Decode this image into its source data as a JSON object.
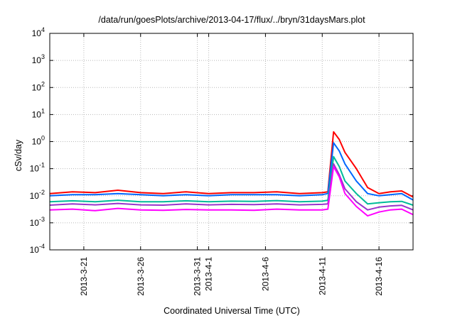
{
  "chart_data": {
    "type": "line",
    "title": "/data/run/goesPlots/archive/2013-04-17/flux/../bryn/31daysMars.plot",
    "xlabel": "Coordinated Universal Time (UTC)",
    "ylabel": "cSv/day",
    "yscale": "log",
    "ylim": [
      0.0001,
      10000
    ],
    "xlim": [
      "2013-03-18",
      "2013-04-19"
    ],
    "grid": true,
    "y_ticks": [
      {
        "base": "10",
        "exp": "-4"
      },
      {
        "base": "10",
        "exp": "-3"
      },
      {
        "base": "10",
        "exp": "-2"
      },
      {
        "base": "10",
        "exp": "-1"
      },
      {
        "base": "10",
        "exp": "0"
      },
      {
        "base": "10",
        "exp": "1"
      },
      {
        "base": "10",
        "exp": "2"
      },
      {
        "base": "10",
        "exp": "3"
      },
      {
        "base": "10",
        "exp": "4"
      }
    ],
    "x_ticks": [
      {
        "date": "2013-03-21",
        "label": "2013-3-21"
      },
      {
        "date": "2013-03-26",
        "label": "2013-3-26"
      },
      {
        "date": "2013-03-31",
        "label": "2013-3-31"
      },
      {
        "date": "2013-04-01",
        "label": "2013-4-1"
      },
      {
        "date": "2013-04-06",
        "label": "2013-4-6"
      },
      {
        "date": "2013-04-11",
        "label": "2013-4-11"
      },
      {
        "date": "2013-04-16",
        "label": "2013-4-16"
      }
    ],
    "series": [
      {
        "color": "#ff0000",
        "x": [
          "2013-03-18",
          "2013-03-20",
          "2013-03-22",
          "2013-03-24",
          "2013-03-26",
          "2013-03-28",
          "2013-03-30",
          "2013-04-01",
          "2013-04-03",
          "2013-04-05",
          "2013-04-07",
          "2013-04-09",
          "2013-04-11",
          "2013-04-11T12:00",
          "2013-04-12",
          "2013-04-12T12:00",
          "2013-04-13",
          "2013-04-14",
          "2013-04-15",
          "2013-04-16",
          "2013-04-17",
          "2013-04-18",
          "2013-04-19"
        ],
        "values": [
          0.012,
          0.014,
          0.013,
          0.016,
          0.013,
          0.012,
          0.014,
          0.012,
          0.013,
          0.013,
          0.014,
          0.012,
          0.013,
          0.014,
          2.3,
          1.2,
          0.4,
          0.1,
          0.02,
          0.012,
          0.014,
          0.015,
          0.009
        ]
      },
      {
        "color": "#0066ff",
        "x": [
          "2013-03-18",
          "2013-03-20",
          "2013-03-22",
          "2013-03-24",
          "2013-03-26",
          "2013-03-28",
          "2013-03-30",
          "2013-04-01",
          "2013-04-03",
          "2013-04-05",
          "2013-04-07",
          "2013-04-09",
          "2013-04-11",
          "2013-04-11T12:00",
          "2013-04-12",
          "2013-04-12T12:00",
          "2013-04-13",
          "2013-04-14",
          "2013-04-15",
          "2013-04-16",
          "2013-04-17",
          "2013-04-18",
          "2013-04-19"
        ],
        "values": [
          0.01,
          0.011,
          0.011,
          0.012,
          0.011,
          0.01,
          0.011,
          0.01,
          0.011,
          0.011,
          0.011,
          0.01,
          0.011,
          0.012,
          0.9,
          0.45,
          0.15,
          0.035,
          0.012,
          0.01,
          0.011,
          0.012,
          0.007
        ]
      },
      {
        "color": "#00bb99",
        "x": [
          "2013-03-18",
          "2013-03-20",
          "2013-03-22",
          "2013-03-24",
          "2013-03-26",
          "2013-03-28",
          "2013-03-30",
          "2013-04-01",
          "2013-04-03",
          "2013-04-05",
          "2013-04-07",
          "2013-04-09",
          "2013-04-11",
          "2013-04-11T12:00",
          "2013-04-12",
          "2013-04-12T12:00",
          "2013-04-13",
          "2013-04-14",
          "2013-04-15",
          "2013-04-16",
          "2013-04-17",
          "2013-04-18",
          "2013-04-19"
        ],
        "values": [
          0.006,
          0.0065,
          0.006,
          0.0068,
          0.006,
          0.006,
          0.0065,
          0.006,
          0.0063,
          0.0062,
          0.0066,
          0.006,
          0.0063,
          0.0068,
          0.28,
          0.12,
          0.035,
          0.012,
          0.005,
          0.0055,
          0.006,
          0.0062,
          0.0045
        ]
      },
      {
        "color": "#9933cc",
        "x": [
          "2013-03-18",
          "2013-03-20",
          "2013-03-22",
          "2013-03-24",
          "2013-03-26",
          "2013-03-28",
          "2013-03-30",
          "2013-04-01",
          "2013-04-03",
          "2013-04-05",
          "2013-04-07",
          "2013-04-09",
          "2013-04-11",
          "2013-04-11T12:00",
          "2013-04-12",
          "2013-04-12T12:00",
          "2013-04-13",
          "2013-04-14",
          "2013-04-15",
          "2013-04-16",
          "2013-04-17",
          "2013-04-18",
          "2013-04-19"
        ],
        "values": [
          0.0045,
          0.005,
          0.0046,
          0.0052,
          0.0046,
          0.0045,
          0.005,
          0.0046,
          0.0048,
          0.0047,
          0.005,
          0.0046,
          0.0048,
          0.005,
          0.15,
          0.06,
          0.018,
          0.006,
          0.003,
          0.0038,
          0.0042,
          0.0044,
          0.003
        ]
      },
      {
        "color": "#ff00ff",
        "x": [
          "2013-03-18",
          "2013-03-20",
          "2013-03-22",
          "2013-03-24",
          "2013-03-26",
          "2013-03-28",
          "2013-03-30",
          "2013-04-01",
          "2013-04-03",
          "2013-04-05",
          "2013-04-07",
          "2013-04-09",
          "2013-04-11",
          "2013-04-11T12:00",
          "2013-04-12",
          "2013-04-12T12:00",
          "2013-04-13",
          "2013-04-14",
          "2013-04-15",
          "2013-04-16",
          "2013-04-17",
          "2013-04-18",
          "2013-04-19"
        ],
        "values": [
          0.003,
          0.0032,
          0.0028,
          0.0034,
          0.003,
          0.0029,
          0.0031,
          0.003,
          0.003,
          0.0029,
          0.0032,
          0.003,
          0.003,
          0.0032,
          0.12,
          0.05,
          0.012,
          0.004,
          0.0018,
          0.0025,
          0.003,
          0.0032,
          0.002
        ]
      }
    ]
  }
}
